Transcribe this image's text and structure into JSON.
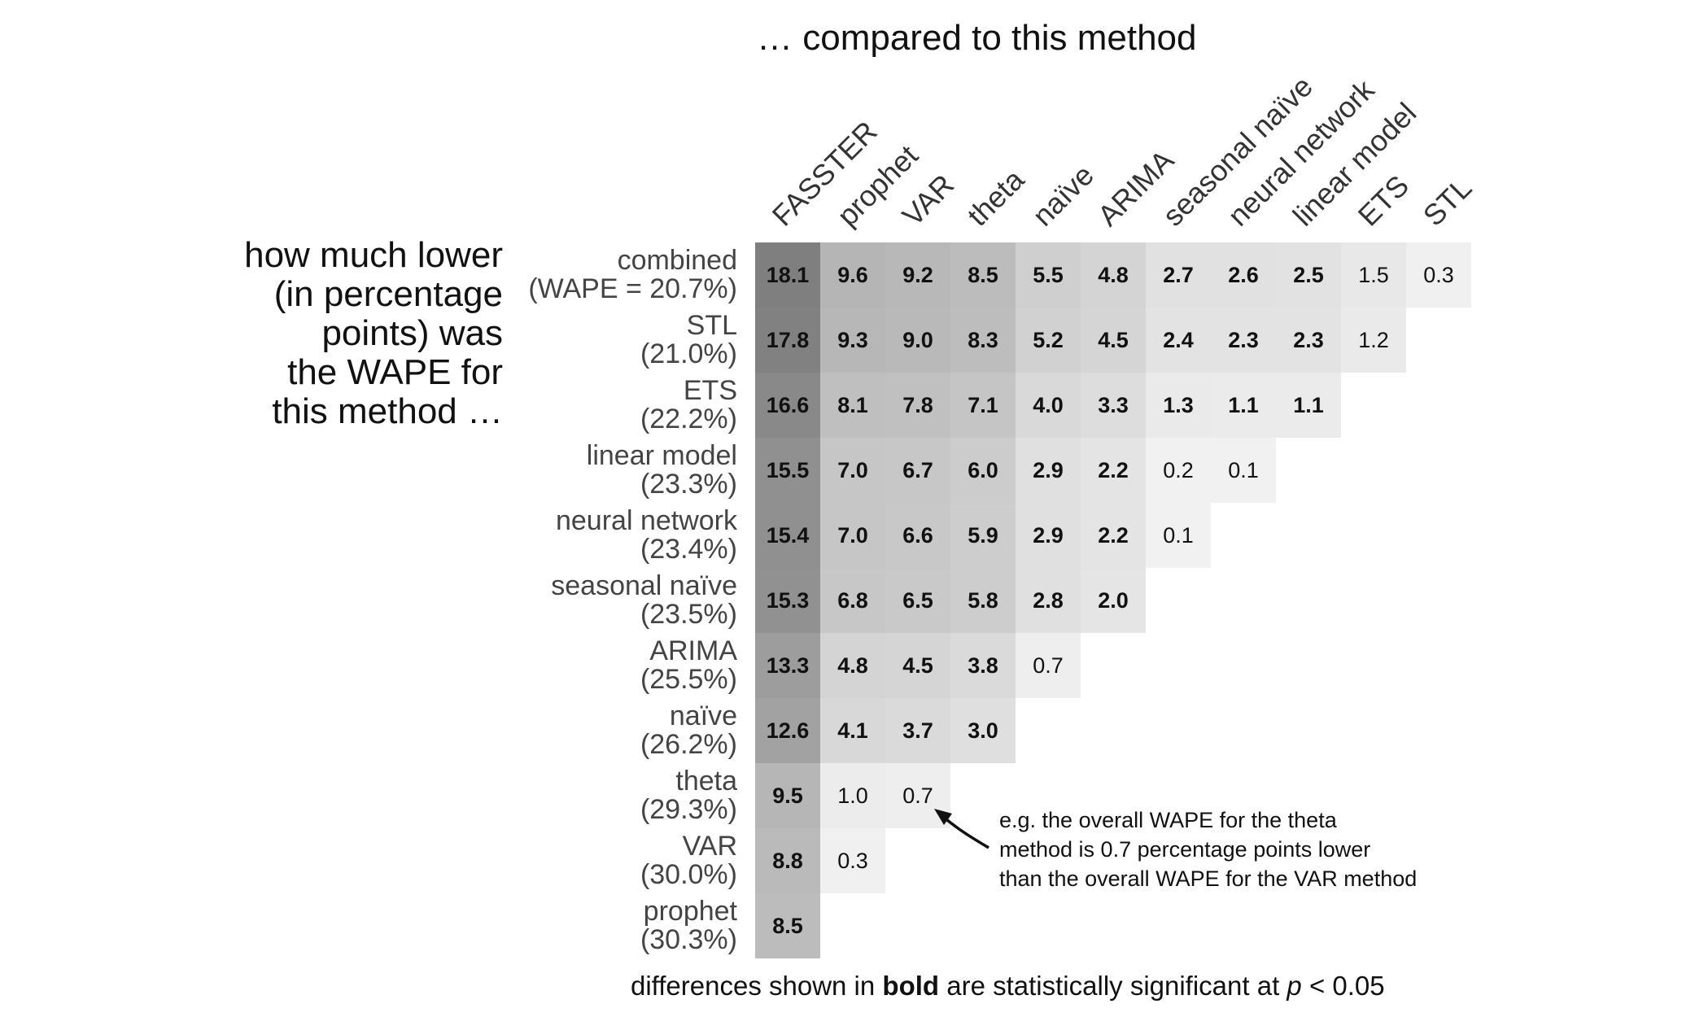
{
  "top_title": "… compared to this method",
  "left_title": "how much lower\n(in percentage\npoints) was\nthe WAPE for\nthis method …",
  "footnote": {
    "prefix": "differences shown in ",
    "bold": "bold",
    "middle": " are statistically significant at ",
    "italic": "p",
    "suffix": " < 0.05"
  },
  "annotation": "e.g. the overall WAPE for the theta\nmethod is 0.7 percentage points lower\nthan the overall WAPE for the VAR method",
  "chart_data": {
    "type": "heatmap",
    "title": "… compared to this method",
    "columns": [
      "FASSTER",
      "prophet",
      "VAR",
      "theta",
      "naïve",
      "ARIMA",
      "seasonal naïve",
      "neural network",
      "linear model",
      "ETS",
      "STL"
    ],
    "rows": [
      {
        "name": "combined",
        "wape": "(WAPE = 20.7%)",
        "values": [
          18.1,
          9.6,
          9.2,
          8.5,
          5.5,
          4.8,
          2.7,
          2.6,
          2.5,
          1.5,
          0.3
        ],
        "significant": [
          true,
          true,
          true,
          true,
          true,
          true,
          true,
          true,
          true,
          false,
          false
        ]
      },
      {
        "name": "STL",
        "wape": "(21.0%)",
        "values": [
          17.8,
          9.3,
          9.0,
          8.3,
          5.2,
          4.5,
          2.4,
          2.3,
          2.3,
          1.2
        ],
        "significant": [
          true,
          true,
          true,
          true,
          true,
          true,
          true,
          true,
          true,
          false
        ]
      },
      {
        "name": "ETS",
        "wape": "(22.2%)",
        "values": [
          16.6,
          8.1,
          7.8,
          7.1,
          4.0,
          3.3,
          1.3,
          1.1,
          1.1
        ],
        "significant": [
          true,
          true,
          true,
          true,
          true,
          true,
          true,
          true,
          true
        ]
      },
      {
        "name": "linear model",
        "wape": "(23.3%)",
        "values": [
          15.5,
          7.0,
          6.7,
          6.0,
          2.9,
          2.2,
          0.2,
          0.1
        ],
        "significant": [
          true,
          true,
          true,
          true,
          true,
          true,
          false,
          false
        ]
      },
      {
        "name": "neural network",
        "wape": "(23.4%)",
        "values": [
          15.4,
          7.0,
          6.6,
          5.9,
          2.9,
          2.2,
          0.1
        ],
        "significant": [
          true,
          true,
          true,
          true,
          true,
          true,
          false
        ]
      },
      {
        "name": "seasonal naïve",
        "wape": "(23.5%)",
        "values": [
          15.3,
          6.8,
          6.5,
          5.8,
          2.8,
          2.0
        ],
        "significant": [
          true,
          true,
          true,
          true,
          true,
          true
        ]
      },
      {
        "name": "ARIMA",
        "wape": "(25.5%)",
        "values": [
          13.3,
          4.8,
          4.5,
          3.8,
          0.7
        ],
        "significant": [
          true,
          true,
          true,
          true,
          false
        ]
      },
      {
        "name": "naïve",
        "wape": "(26.2%)",
        "values": [
          12.6,
          4.1,
          3.7,
          3.0
        ],
        "significant": [
          true,
          true,
          true,
          true
        ]
      },
      {
        "name": "theta",
        "wape": "(29.3%)",
        "values": [
          9.5,
          1.0,
          0.7
        ],
        "significant": [
          true,
          false,
          false
        ]
      },
      {
        "name": "VAR",
        "wape": "(30.0%)",
        "values": [
          8.8,
          0.3
        ],
        "significant": [
          true,
          false
        ]
      },
      {
        "name": "prophet",
        "wape": "(30.3%)",
        "values": [
          8.5
        ],
        "significant": [
          true
        ]
      }
    ],
    "color_scale": {
      "low": "#f2f2f2",
      "high": "#7f7f7f"
    },
    "grid": false
  }
}
